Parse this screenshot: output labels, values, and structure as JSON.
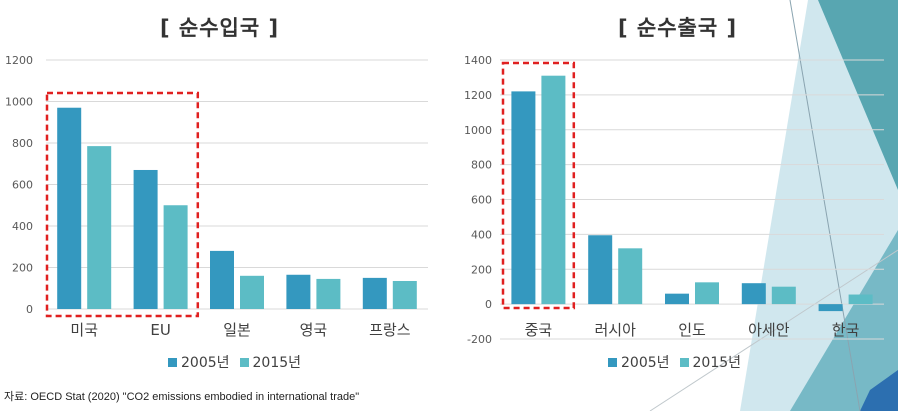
{
  "colors": {
    "series_2005": "#3498bf",
    "series_2015": "#5cbcc5",
    "highlight": "#e02020",
    "grid": "#d9d9d9"
  },
  "source_note": "자료: OECD Stat (2020) \"CO2 emissions embodied in international trade\"",
  "chart_data": [
    {
      "type": "bar",
      "title": "[ 순수입국 ]",
      "categories": [
        "미국",
        "EU",
        "일본",
        "영국",
        "프랑스"
      ],
      "series": [
        {
          "name": "2005년",
          "values": [
            970,
            670,
            280,
            165,
            150
          ]
        },
        {
          "name": "2015년",
          "values": [
            785,
            500,
            160,
            145,
            135
          ]
        }
      ],
      "ylim": [
        0,
        1200
      ],
      "yticks": [
        "0",
        "200",
        "400",
        "600",
        "800",
        "1000",
        "1200"
      ],
      "grid": true,
      "legend": "bottom",
      "highlighted_categories": [
        "미국",
        "EU"
      ]
    },
    {
      "type": "bar",
      "title": "[ 순수출국 ]",
      "categories": [
        "중국",
        "러시아",
        "인도",
        "아세안",
        "한국"
      ],
      "series": [
        {
          "name": "2005년",
          "values": [
            1220,
            395,
            60,
            120,
            -40
          ]
        },
        {
          "name": "2015년",
          "values": [
            1310,
            320,
            125,
            100,
            55
          ]
        }
      ],
      "ylim": [
        -200,
        1400
      ],
      "yticks": [
        "-200",
        "0",
        "200",
        "400",
        "600",
        "800",
        "1000",
        "1200",
        "1400"
      ],
      "grid": true,
      "legend": "bottom",
      "highlighted_categories": [
        "중국"
      ]
    }
  ]
}
